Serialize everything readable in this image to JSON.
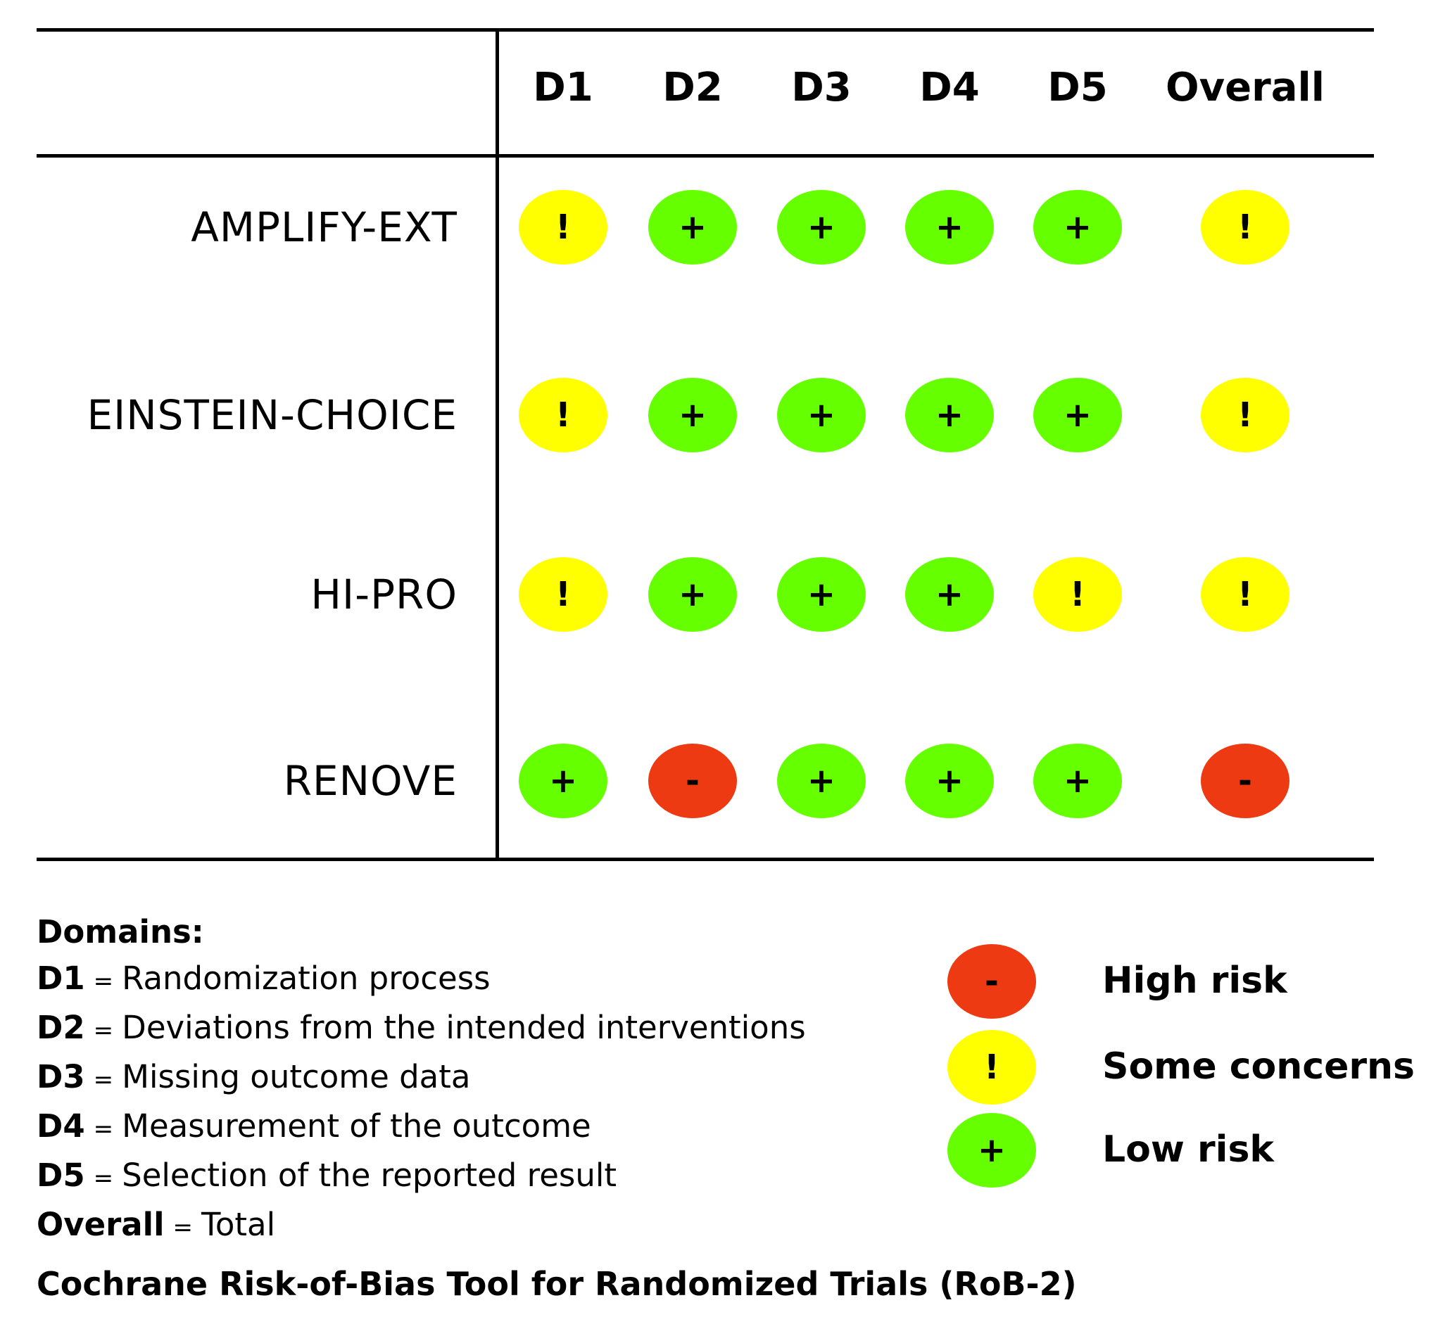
{
  "chart_data": {
    "type": "table",
    "columns": [
      "D1",
      "D2",
      "D3",
      "D4",
      "D5",
      "Overall"
    ],
    "rows": [
      {
        "study": "AMPLIFY-EXT",
        "values": [
          "some",
          "low",
          "low",
          "low",
          "low",
          "some"
        ]
      },
      {
        "study": "EINSTEIN-CHOICE",
        "values": [
          "some",
          "low",
          "low",
          "low",
          "low",
          "some"
        ]
      },
      {
        "study": "HI-PRO",
        "values": [
          "some",
          "low",
          "low",
          "low",
          "some",
          "some"
        ]
      },
      {
        "study": "RENOVE",
        "values": [
          "low",
          "high",
          "low",
          "low",
          "low",
          "high"
        ]
      }
    ],
    "judgements": {
      "high": {
        "symbol": "-",
        "label": "High risk",
        "color": "#ee3a12"
      },
      "some": {
        "symbol": "!",
        "label": "Some concerns",
        "color": "#ffff00"
      },
      "low": {
        "symbol": "+",
        "label": "Low risk",
        "color": "#66ff00"
      }
    },
    "legend_order": [
      "high",
      "some",
      "low"
    ]
  },
  "domains": {
    "heading": "Domains:",
    "items": [
      {
        "key": "D1",
        "sep": "=",
        "text": "Randomization process"
      },
      {
        "key": "D2",
        "sep": "=",
        "text": "Deviations from the intended interventions"
      },
      {
        "key": "D3",
        "sep": "=",
        "text": "Missing outcome data"
      },
      {
        "key": "D4",
        "sep": "=",
        "text": "Measurement of the outcome"
      },
      {
        "key": "D5",
        "sep": "=",
        "text": "Selection of the reported result"
      },
      {
        "key": "Overall",
        "sep": "=",
        "text": "Total"
      }
    ]
  },
  "footer": "Cochrane Risk-of-Bias Tool for Randomized Trials (RoB-2)"
}
